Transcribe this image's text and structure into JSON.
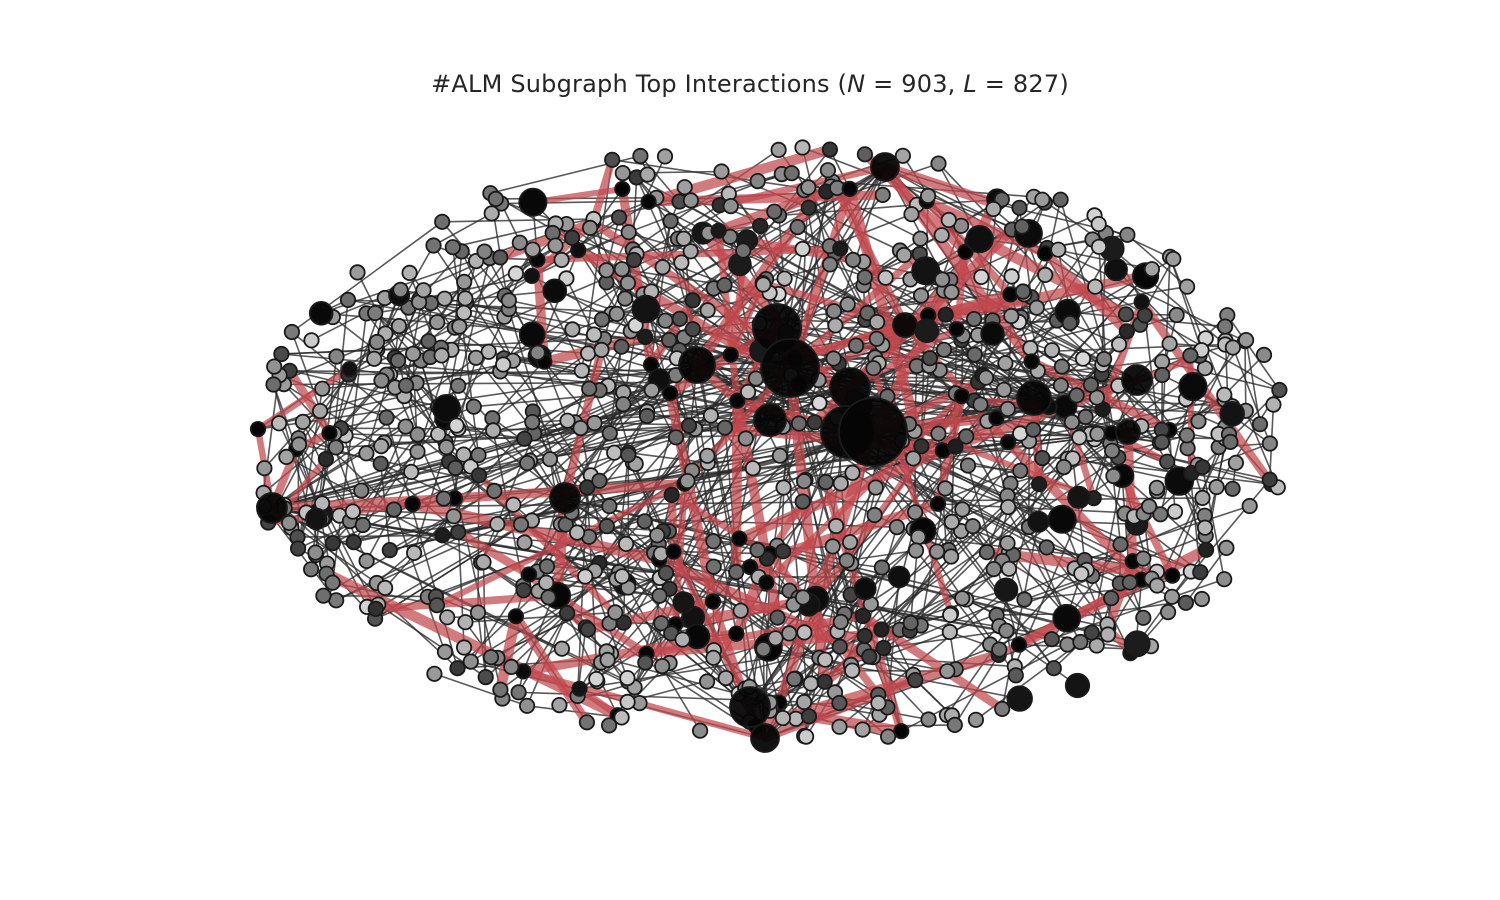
{
  "title": {
    "prefix": "#ALM Subgraph Top Interactions (",
    "n_symbol": "N",
    "n_equals": " = ",
    "n_value": "903",
    "separator": ", ",
    "l_symbol": "L",
    "l_equals": " = ",
    "l_value": "827",
    "suffix": ")"
  },
  "graph": {
    "node_count": 903,
    "edge_count": 827,
    "layout": "elliptical spring layout",
    "colors": {
      "background": "#ffffff",
      "edge": "#2a2a2a",
      "top_edge": "#c0484e",
      "node_stroke": "#1a1a1a",
      "node_fill_low": "#f2f2f2",
      "node_fill_mid": "#6e6e6e",
      "node_fill_high": "#050505"
    }
  }
}
